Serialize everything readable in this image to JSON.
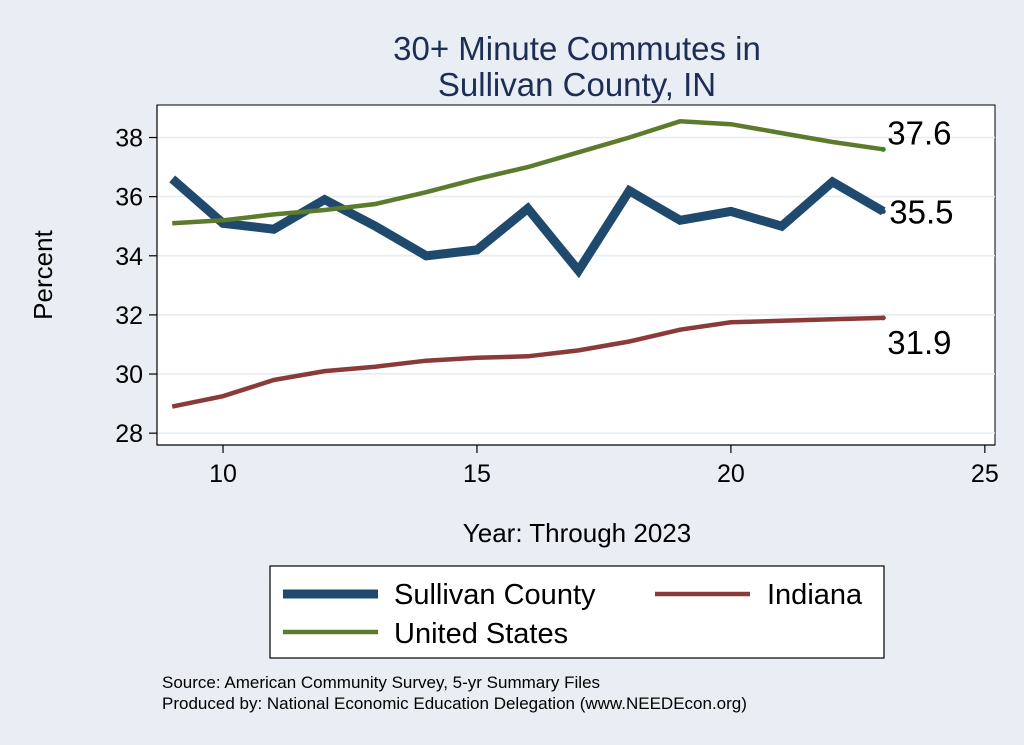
{
  "chart_data": {
    "type": "line",
    "title_lines": [
      "30+ Minute Commutes in",
      "Sullivan County, IN"
    ],
    "xlabel": "Year: Through 2023",
    "ylabel": "Percent",
    "xlim": [
      8.7,
      25.2
    ],
    "ylim": [
      27.6,
      39.1
    ],
    "x_ticks": [
      10,
      15,
      20,
      25
    ],
    "y_ticks": [
      28,
      30,
      32,
      34,
      36,
      38
    ],
    "grid": true,
    "legend_position": "bottom",
    "series": [
      {
        "name": "Sullivan County",
        "color": "#1f4a6e",
        "x": [
          9,
          10,
          11,
          12,
          13,
          14,
          15,
          16,
          17,
          18,
          19,
          20,
          21,
          22,
          23
        ],
        "values": [
          36.6,
          35.1,
          34.9,
          35.9,
          35.0,
          34.0,
          34.2,
          35.6,
          33.5,
          36.2,
          35.2,
          35.5,
          35.0,
          36.5,
          35.5
        ],
        "end_label": "35.5"
      },
      {
        "name": "Indiana",
        "color": "#8b3a3a",
        "x": [
          9,
          10,
          11,
          12,
          13,
          14,
          15,
          16,
          17,
          18,
          19,
          20,
          21,
          22,
          23
        ],
        "values": [
          28.9,
          29.25,
          29.8,
          30.1,
          30.25,
          30.45,
          30.55,
          30.6,
          30.8,
          31.1,
          31.5,
          31.75,
          31.8,
          31.85,
          31.9
        ],
        "end_label": "31.9"
      },
      {
        "name": "United States",
        "color": "#5d7b2c",
        "x": [
          9,
          10,
          11,
          12,
          13,
          14,
          15,
          16,
          17,
          18,
          19,
          20,
          21,
          22,
          23
        ],
        "values": [
          35.1,
          35.2,
          35.4,
          35.55,
          35.75,
          36.15,
          36.6,
          37.0,
          37.5,
          38.0,
          38.55,
          38.45,
          38.15,
          37.85,
          37.6
        ],
        "end_label": "37.6"
      }
    ],
    "legend_order": [
      "Sullivan County",
      "Indiana",
      "United States"
    ]
  },
  "source_lines": [
    "Source: American Community Survey, 5-yr Summary Files",
    "Produced by: National Economic Education Delegation (www.NEEDEcon.org)"
  ]
}
